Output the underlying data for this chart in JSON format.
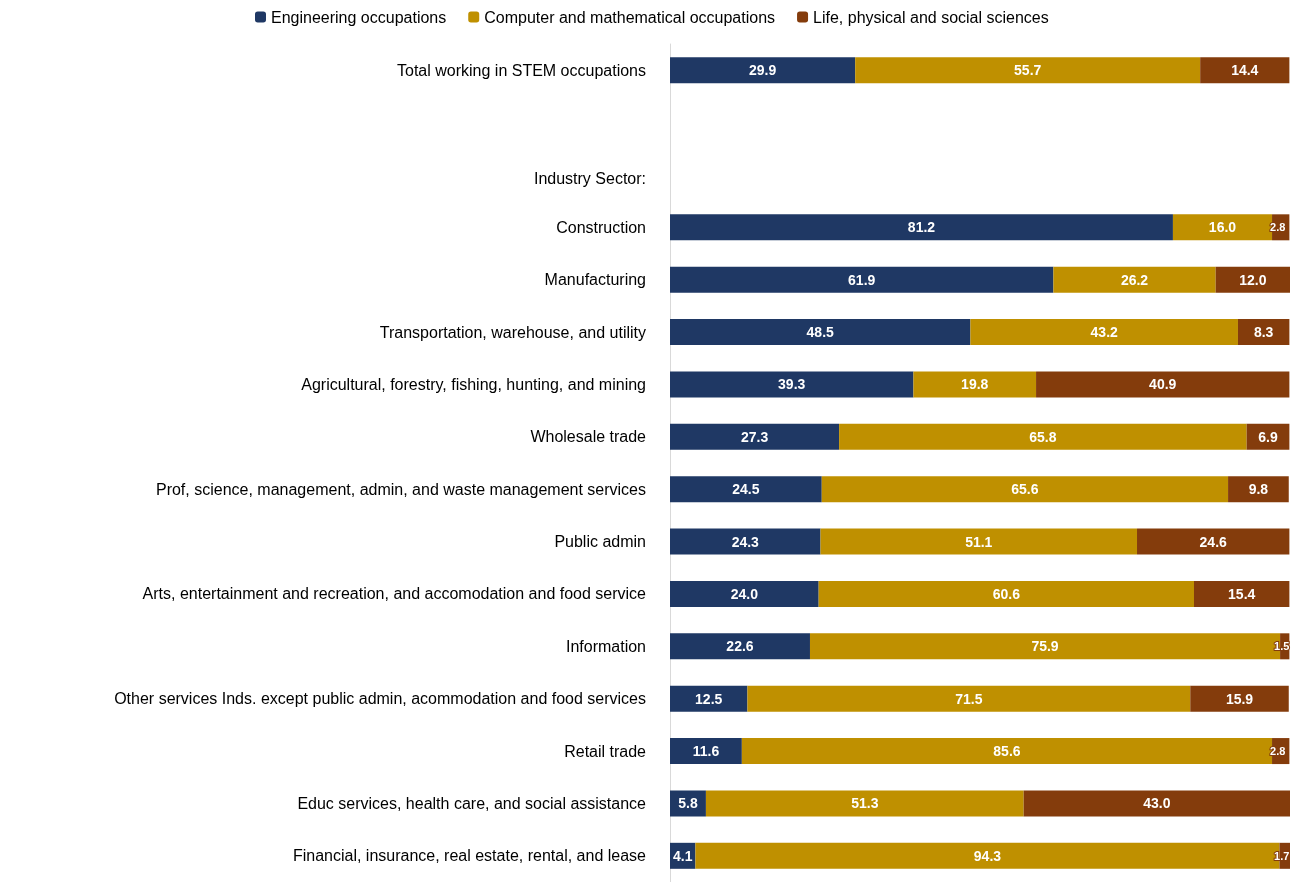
{
  "chart_data": {
    "type": "bar",
    "orientation": "horizontal",
    "stacked": true,
    "legend": "top",
    "tick_labels": "y",
    "annotations": [
      "Industry Sector:"
    ],
    "xlim": [
      0,
      100.1
    ],
    "categories": [
      "Total working in STEM occupations",
      null,
      null,
      "Construction",
      "Manufacturing",
      "Transportation, warehouse, and utility",
      "Agricultural, forestry, fishing, hunting, and mining",
      "Wholesale trade",
      "Prof, science, management, admin, and waste management services",
      "Public admin",
      "Arts, entertainment and recreation, and accomodation and food service",
      "Information",
      "Other services Inds. except public admin, acommodation and food services",
      "Retail trade",
      "Educ services, health care, and social assistance",
      "Financial, insurance, real estate, rental, and lease"
    ],
    "series": [
      {
        "name": "Engineering occupations",
        "color": "#1f3864",
        "values": [
          29.9,
          null,
          null,
          81.2,
          61.9,
          48.5,
          39.3,
          27.3,
          24.5,
          24.3,
          24.0,
          22.6,
          12.5,
          11.6,
          5.8,
          4.1
        ],
        "value_labels": [
          "29.9",
          null,
          null,
          "81.2",
          "61.9",
          "48.5",
          "39.3",
          "27.3",
          "24.5",
          "24.3",
          "24.0",
          "22.6",
          "12.5",
          "11.6",
          "5.8",
          "4.1"
        ]
      },
      {
        "name": "Computer and mathematical occupations",
        "color": "#bf9000",
        "values": [
          55.7,
          null,
          null,
          16.0,
          26.2,
          43.2,
          19.8,
          65.8,
          65.6,
          51.1,
          60.6,
          75.9,
          71.5,
          85.6,
          51.3,
          94.3
        ],
        "value_labels": [
          "55.7",
          null,
          null,
          "16.0",
          "26.2",
          "43.2",
          "19.8",
          "65.8",
          "65.6",
          "51.1",
          "60.6",
          "75.9",
          "71.5",
          "85.6",
          "51.3",
          "94.3"
        ]
      },
      {
        "name": "Life, physical and social sciences",
        "color": "#843c0c",
        "values": [
          14.4,
          null,
          null,
          2.8,
          12.0,
          8.3,
          40.9,
          6.9,
          9.8,
          24.6,
          15.4,
          1.5,
          15.9,
          2.8,
          43.0,
          1.7
        ],
        "value_labels": [
          "14.4",
          null,
          null,
          "2.8",
          "12.0",
          "8.3",
          "40.9",
          "6.9",
          "9.8",
          "24.6",
          "15.4",
          "1.5",
          "15.9",
          "2.8",
          "43.0",
          "1.7"
        ]
      }
    ]
  }
}
